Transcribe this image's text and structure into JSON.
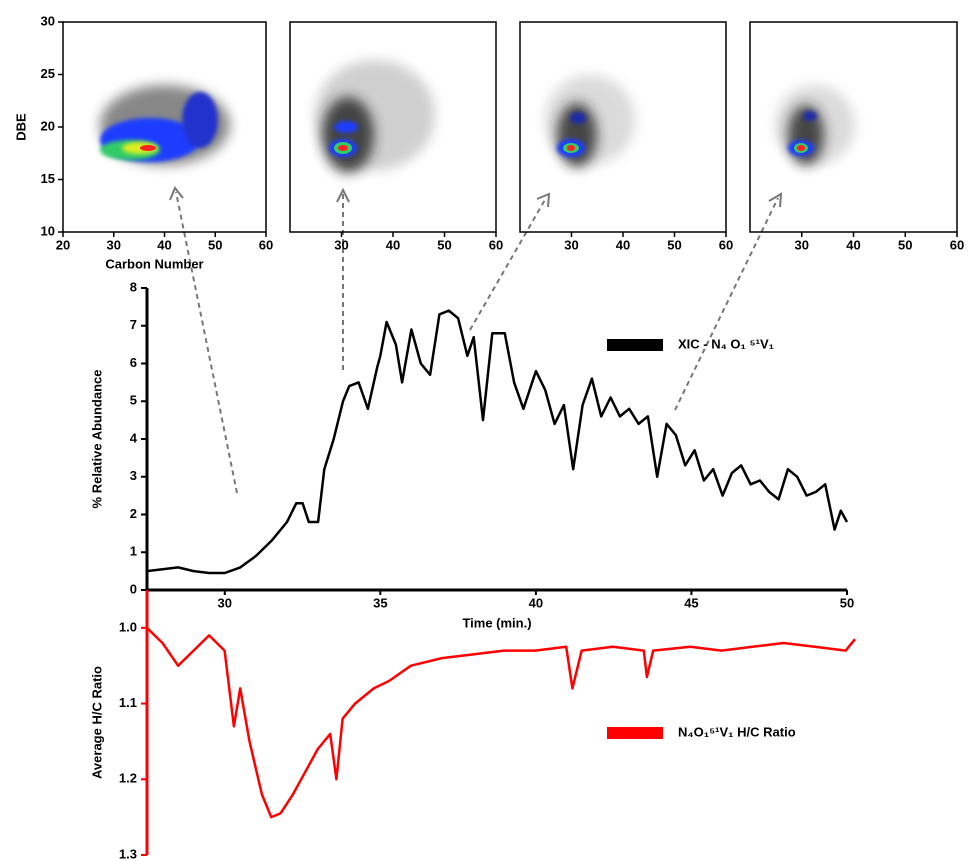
{
  "chart_data": [
    {
      "type": "heatmap",
      "xlabel": "Carbon Number",
      "ylabel": "DBE",
      "xlim": [
        20,
        60
      ],
      "xticks": [
        20,
        30,
        40,
        50,
        60
      ],
      "ylim": [
        10,
        30
      ],
      "yticks": [
        10,
        15,
        20,
        25,
        30
      ]
    },
    {
      "type": "heatmap",
      "xlim": [
        20,
        60
      ],
      "xticks": [
        30,
        40,
        50,
        60
      ],
      "ylim": [
        10,
        30
      ]
    },
    {
      "type": "heatmap",
      "xlim": [
        20,
        60
      ],
      "xticks": [
        30,
        40,
        50,
        60
      ],
      "ylim": [
        10,
        30
      ]
    },
    {
      "type": "heatmap",
      "xlim": [
        20,
        60
      ],
      "xticks": [
        30,
        40,
        50,
        60
      ],
      "ylim": [
        10,
        30
      ]
    },
    {
      "type": "line",
      "xlabel": "Time (min.)",
      "ylabel": "% Relative Abundance",
      "xlim": [
        27.5,
        50
      ],
      "xticks": [
        30,
        35,
        40,
        45,
        50
      ],
      "ylim": [
        0,
        8
      ],
      "yticks": [
        0,
        1,
        2,
        3,
        4,
        5,
        6,
        7,
        8
      ],
      "x": [
        27.5,
        28,
        28.5,
        29,
        29.5,
        30,
        30.5,
        31,
        31.5,
        32,
        32.3,
        32.5,
        32.7,
        33,
        33.2,
        33.5,
        33.8,
        34,
        34.3,
        34.6,
        34.9,
        35,
        35.2,
        35.5,
        35.7,
        36,
        36.3,
        36.6,
        36.9,
        37.2,
        37.5,
        37.8,
        38,
        38.3,
        38.6,
        39,
        39.3,
        39.6,
        40,
        40.3,
        40.6,
        40.9,
        41.2,
        41.5,
        41.8,
        42.1,
        42.4,
        42.7,
        43,
        43.3,
        43.6,
        43.9,
        44.2,
        44.5,
        44.8,
        45.1,
        45.4,
        45.7,
        46,
        46.3,
        46.6,
        46.9,
        47.2,
        47.5,
        47.8,
        48.1,
        48.4,
        48.7,
        49,
        49.3,
        49.6,
        49.8,
        50
      ],
      "series": [
        {
          "name": "XIC - N₄ O₁ ⁵¹V₁",
          "color": "#000000",
          "values": [
            0.5,
            0.55,
            0.6,
            0.5,
            0.45,
            0.45,
            0.6,
            0.9,
            1.3,
            1.8,
            2.3,
            2.3,
            1.8,
            1.8,
            3.2,
            4.0,
            5.0,
            5.4,
            5.5,
            4.8,
            5.9,
            6.2,
            7.1,
            6.5,
            5.5,
            6.9,
            6.0,
            5.7,
            7.3,
            7.4,
            7.2,
            6.2,
            6.7,
            4.5,
            6.8,
            6.8,
            5.5,
            4.8,
            5.8,
            5.3,
            4.4,
            4.9,
            3.2,
            4.9,
            5.6,
            4.6,
            5.1,
            4.6,
            4.8,
            4.4,
            4.6,
            3.0,
            4.4,
            4.1,
            3.3,
            3.7,
            2.9,
            3.2,
            2.5,
            3.1,
            3.3,
            2.8,
            2.9,
            2.6,
            2.4,
            3.2,
            3.0,
            2.5,
            2.6,
            2.8,
            1.6,
            2.1,
            1.8
          ]
        }
      ]
    },
    {
      "type": "line",
      "ylabel": "Average H/C Ratio",
      "inverted": true,
      "xlim": [
        27.5,
        50.3
      ],
      "ylim": [
        0.95,
        1.3
      ],
      "yticks": [
        {
          "value": 1.0,
          "label": "1.0"
        },
        1.1,
        1.2,
        1.3
      ],
      "x": [
        27.5,
        28,
        28.5,
        29,
        29.5,
        30,
        30.3,
        30.5,
        30.8,
        31.2,
        31.5,
        31.8,
        32.2,
        32.6,
        33,
        33.4,
        33.6,
        33.8,
        34.2,
        34.8,
        35.3,
        36,
        37,
        38,
        39,
        40,
        41,
        41.2,
        41.5,
        42.5,
        43.5,
        43.6,
        43.8,
        45,
        46,
        47,
        48,
        49,
        50,
        50.3
      ],
      "series": [
        {
          "name": "N₄O₁⁵¹V₁  H/C Ratio",
          "color": "#ff0000",
          "values": [
            1.0,
            1.02,
            1.05,
            1.03,
            1.01,
            1.03,
            1.13,
            1.08,
            1.15,
            1.22,
            1.25,
            1.245,
            1.22,
            1.19,
            1.16,
            1.14,
            1.2,
            1.12,
            1.1,
            1.08,
            1.07,
            1.05,
            1.04,
            1.035,
            1.03,
            1.03,
            1.025,
            1.08,
            1.03,
            1.025,
            1.03,
            1.065,
            1.03,
            1.025,
            1.03,
            1.025,
            1.02,
            1.025,
            1.03,
            1.015
          ]
        }
      ]
    }
  ]
}
